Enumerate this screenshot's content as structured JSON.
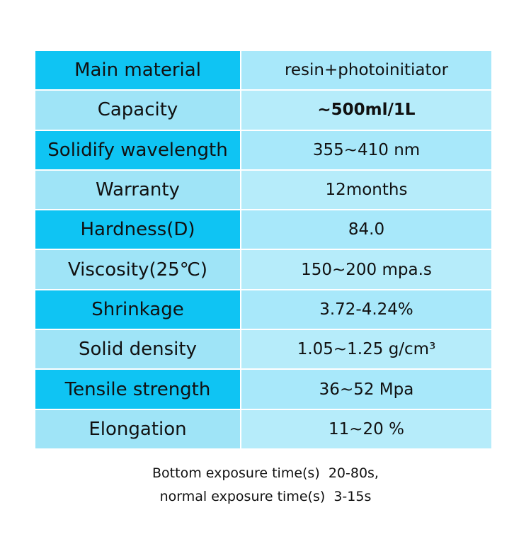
{
  "table": {
    "rows": [
      [
        "Main material",
        "resin+photoinitiator"
      ],
      [
        "Capacity",
        "~500ml/1L"
      ],
      [
        "Solidify wavelength",
        "355~410 nm"
      ],
      [
        "Warranty",
        "12months"
      ],
      [
        "Hardness(D)",
        "84.0"
      ],
      [
        "Viscosity(25℃)",
        "150~200 mpa.s"
      ],
      [
        "Shrinkage",
        "3.72-4.24%"
      ],
      [
        "Solid density",
        "1.05~1.25 g/cm³"
      ],
      [
        "Tensile strength",
        "36~52 Mpa"
      ],
      [
        "Elongation",
        "11~20 %"
      ]
    ]
  },
  "footer": {
    "lines": [
      "Bottom exposure time(s)  20-80s,",
      "normal exposure time(s)  3-15s"
    ]
  }
}
